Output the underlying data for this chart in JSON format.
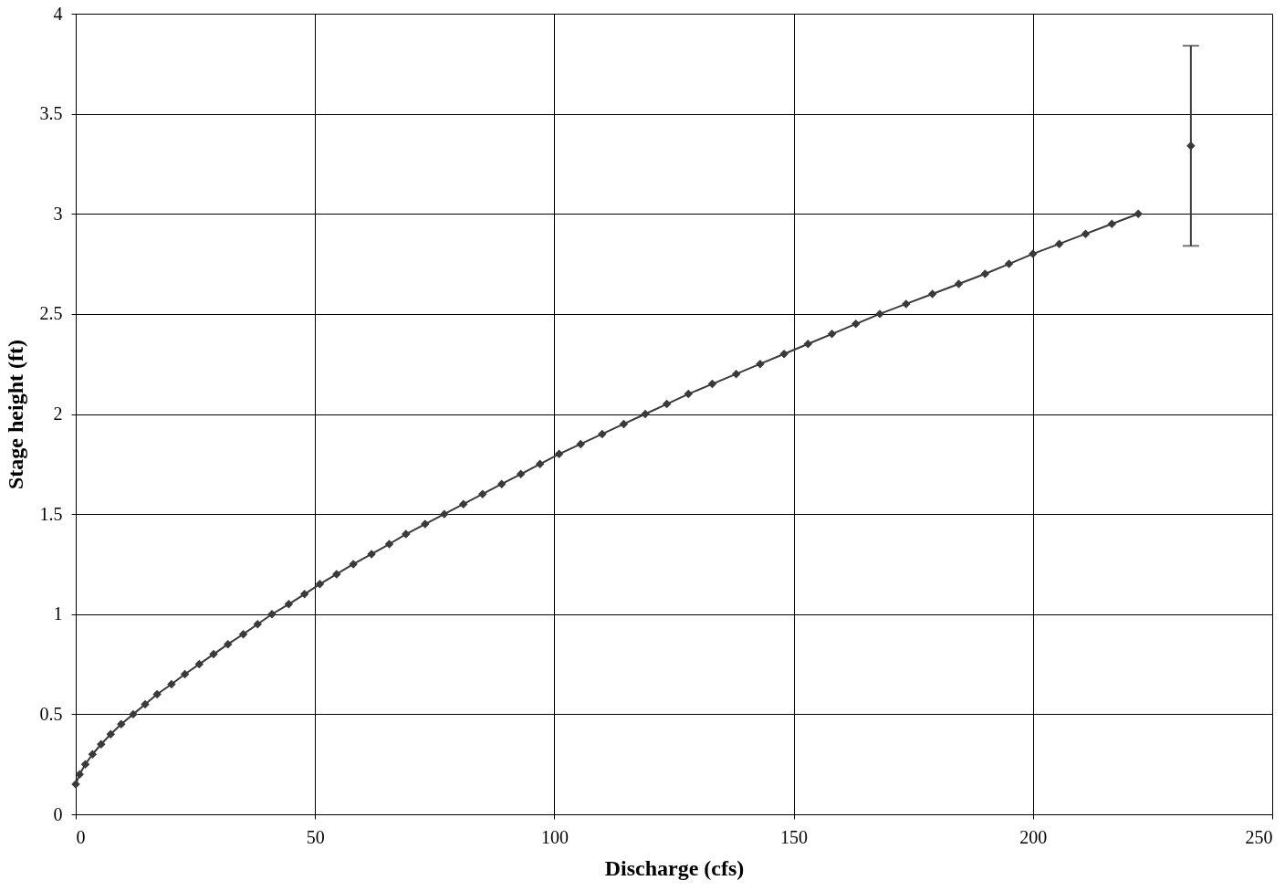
{
  "chart_data": {
    "type": "line",
    "xlabel": "Discharge (cfs)",
    "ylabel": "Stage height (ft)",
    "xlim": [
      0,
      250
    ],
    "xticks": [
      0,
      50,
      100,
      150,
      200,
      250
    ],
    "ylim": [
      0,
      4
    ],
    "yticks": [
      0,
      0.5,
      1,
      1.5,
      2,
      2.5,
      3,
      3.5,
      4
    ],
    "grid": true,
    "marker": "diamond",
    "line_style": "solid",
    "series": [
      {
        "color": "#3a3a3a",
        "x": [
          0,
          0.8,
          2,
          3.5,
          5.3,
          7.3,
          9.5,
          12,
          14.5,
          17,
          20,
          22.8,
          25.8,
          28.8,
          31.8,
          35,
          38,
          41,
          44.5,
          47.8,
          51,
          54.5,
          58,
          61.8,
          65.5,
          69,
          73,
          77,
          81,
          85,
          89,
          93,
          97,
          101,
          105.5,
          110,
          114.5,
          119,
          123.5,
          128,
          133,
          138,
          143,
          148,
          153,
          158,
          163,
          168,
          173.5,
          179,
          184.5,
          190,
          195,
          200,
          205.5,
          211,
          216.5,
          222
        ],
        "values": [
          0.15,
          0.2,
          0.25,
          0.3,
          0.35,
          0.4,
          0.45,
          0.5,
          0.55,
          0.6,
          0.65,
          0.7,
          0.75,
          0.8,
          0.85,
          0.9,
          0.95,
          1.0,
          1.05,
          1.1,
          1.15,
          1.2,
          1.25,
          1.3,
          1.35,
          1.4,
          1.45,
          1.5,
          1.55,
          1.6,
          1.65,
          1.7,
          1.75,
          1.8,
          1.85,
          1.9,
          1.95,
          2.0,
          2.05,
          2.1,
          2.15,
          2.2,
          2.25,
          2.3,
          2.35,
          2.4,
          2.45,
          2.5,
          2.55,
          2.6,
          2.65,
          2.7,
          2.75,
          2.8,
          2.85,
          2.9,
          2.95,
          3.0
        ]
      },
      {
        "type": "scatter",
        "color": "#3a3a3a",
        "x": [
          233
        ],
        "values": [
          3.34
        ],
        "errors": [
          [
            2.84,
            3.84
          ]
        ]
      }
    ]
  }
}
